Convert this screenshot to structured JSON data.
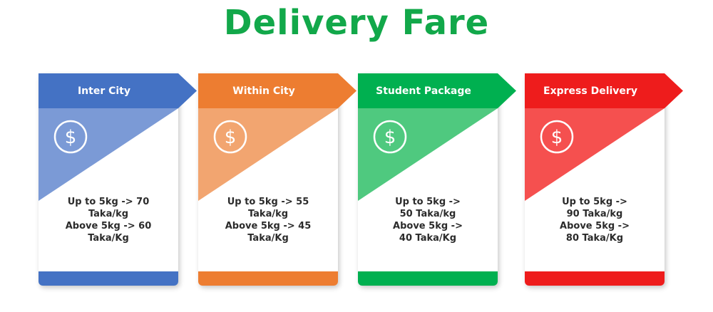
{
  "title": "Delivery Fare",
  "cards": [
    {
      "label": "Inter City",
      "icon": "dollar-circle-icon",
      "colors": {
        "header": "#4472c4",
        "triangle": "#7b9ad6",
        "bar": "#4472c4"
      },
      "lines": [
        "Up to 5kg -> 70",
        "Taka/kg",
        "Above 5kg -> 60",
        "Taka/Kg"
      ]
    },
    {
      "label": "Within City",
      "icon": "dollar-circle-icon",
      "colors": {
        "header": "#ed7d31",
        "triangle": "#f2a570",
        "bar": "#ed7d31"
      },
      "lines": [
        "Up to 5kg -> 55",
        "Taka/kg",
        "Above 5kg -> 45",
        "Taka/Kg"
      ]
    },
    {
      "label": "Student Package",
      "icon": "dollar-circle-icon",
      "colors": {
        "header": "#00b050",
        "triangle": "#4fc97f",
        "bar": "#00b050"
      },
      "lines": [
        "Up to 5kg ->",
        "50 Taka/kg",
        "Above 5kg ->",
        "40 Taka/Kg"
      ]
    },
    {
      "label": "Express Delivery",
      "icon": "dollar-circle-icon",
      "colors": {
        "header": "#ee1c1c",
        "triangle": "#f5504f",
        "bar": "#ee1c1c"
      },
      "lines": [
        "Up to 5kg ->",
        "90 Taka/kg",
        "Above 5kg ->",
        "80 Taka/Kg"
      ]
    }
  ]
}
